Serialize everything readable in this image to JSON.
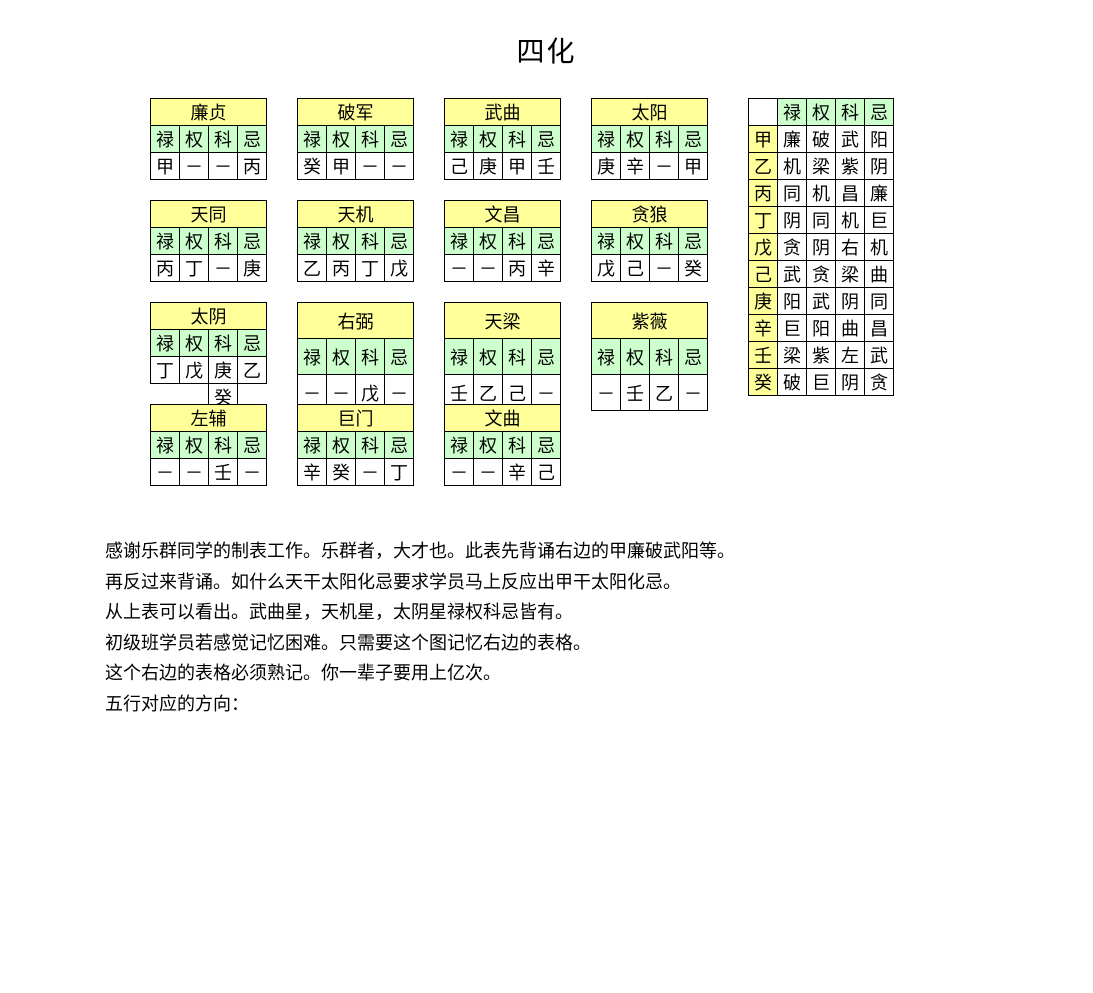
{
  "title": "四化",
  "cols": [
    "禄",
    "权",
    "科",
    "忌"
  ],
  "stars": [
    [
      {
        "name": "廉贞",
        "values": [
          "甲",
          "－",
          "－",
          "丙"
        ],
        "extra": null
      },
      {
        "name": "破军",
        "values": [
          "癸",
          "甲",
          "－",
          "－"
        ],
        "extra": null
      },
      {
        "name": "武曲",
        "values": [
          "己",
          "庚",
          "甲",
          "壬"
        ],
        "extra": null
      },
      {
        "name": "太阳",
        "values": [
          "庚",
          "辛",
          "－",
          "甲"
        ],
        "extra": null
      }
    ],
    [
      {
        "name": "天同",
        "values": [
          "丙",
          "丁",
          "－",
          "庚"
        ],
        "extra": null
      },
      {
        "name": "天机",
        "values": [
          "乙",
          "丙",
          "丁",
          "戊"
        ],
        "extra": null
      },
      {
        "name": "文昌",
        "values": [
          "－",
          "－",
          "丙",
          "辛"
        ],
        "extra": null
      },
      {
        "name": "贪狼",
        "values": [
          "戊",
          "己",
          "－",
          "癸"
        ],
        "extra": null
      }
    ],
    [
      {
        "name": "太阴",
        "values": [
          "丁",
          "戊",
          "庚",
          "乙"
        ],
        "extra": {
          "col": 2,
          "text": "癸"
        }
      },
      {
        "name": "右弼",
        "values": [
          "－",
          "－",
          "戊",
          "－"
        ],
        "extra": null
      },
      {
        "name": "天梁",
        "values": [
          "壬",
          "乙",
          "己",
          "－"
        ],
        "extra": null
      },
      {
        "name": "紫薇",
        "values": [
          "－",
          "壬",
          "乙",
          "－"
        ],
        "extra": null
      }
    ],
    [
      {
        "name": "左辅",
        "values": [
          "－",
          "－",
          "壬",
          "－"
        ],
        "extra": null
      },
      {
        "name": "巨门",
        "values": [
          "辛",
          "癸",
          "－",
          "丁"
        ],
        "extra": null
      },
      {
        "name": "文曲",
        "values": [
          "－",
          "－",
          "辛",
          "己"
        ],
        "extra": null
      }
    ]
  ],
  "right": {
    "cols": [
      "禄",
      "权",
      "科",
      "忌"
    ],
    "rows": [
      {
        "h": "甲",
        "v": [
          "廉",
          "破",
          "武",
          "阳"
        ]
      },
      {
        "h": "乙",
        "v": [
          "机",
          "梁",
          "紫",
          "阴"
        ]
      },
      {
        "h": "丙",
        "v": [
          "同",
          "机",
          "昌",
          "廉"
        ]
      },
      {
        "h": "丁",
        "v": [
          "阴",
          "同",
          "机",
          "巨"
        ]
      },
      {
        "h": "戊",
        "v": [
          "贪",
          "阴",
          "右",
          "机"
        ]
      },
      {
        "h": "己",
        "v": [
          "武",
          "贪",
          "梁",
          "曲"
        ]
      },
      {
        "h": "庚",
        "v": [
          "阳",
          "武",
          "阴",
          "同"
        ]
      },
      {
        "h": "辛",
        "v": [
          "巨",
          "阳",
          "曲",
          "昌"
        ]
      },
      {
        "h": "壬",
        "v": [
          "梁",
          "紫",
          "左",
          "武"
        ]
      },
      {
        "h": "癸",
        "v": [
          "破",
          "巨",
          "阴",
          "贪"
        ]
      }
    ]
  },
  "paragraphs": [
    "感谢乐群同学的制表工作。乐群者，大才也。此表先背诵右边的甲廉破武阳等。",
    "再反过来背诵。如什么天干太阳化忌要求学员马上反应出甲干太阳化忌。",
    "从上表可以看出。武曲星，天机星，太阴星禄权科忌皆有。",
    "初级班学员若感觉记忆困难。只需要这个图记忆右边的表格。",
    "这个右边的表格必须熟记。你一辈子要用上亿次。"
  ],
  "section2_title": "五行对应的方向：",
  "colors": {
    "name_bg": "#ffff99",
    "header_bg": "#ccffcc",
    "value_bg": "#ffffff",
    "border": "#000000",
    "page_bg": "#ffffff",
    "text": "#000000"
  }
}
